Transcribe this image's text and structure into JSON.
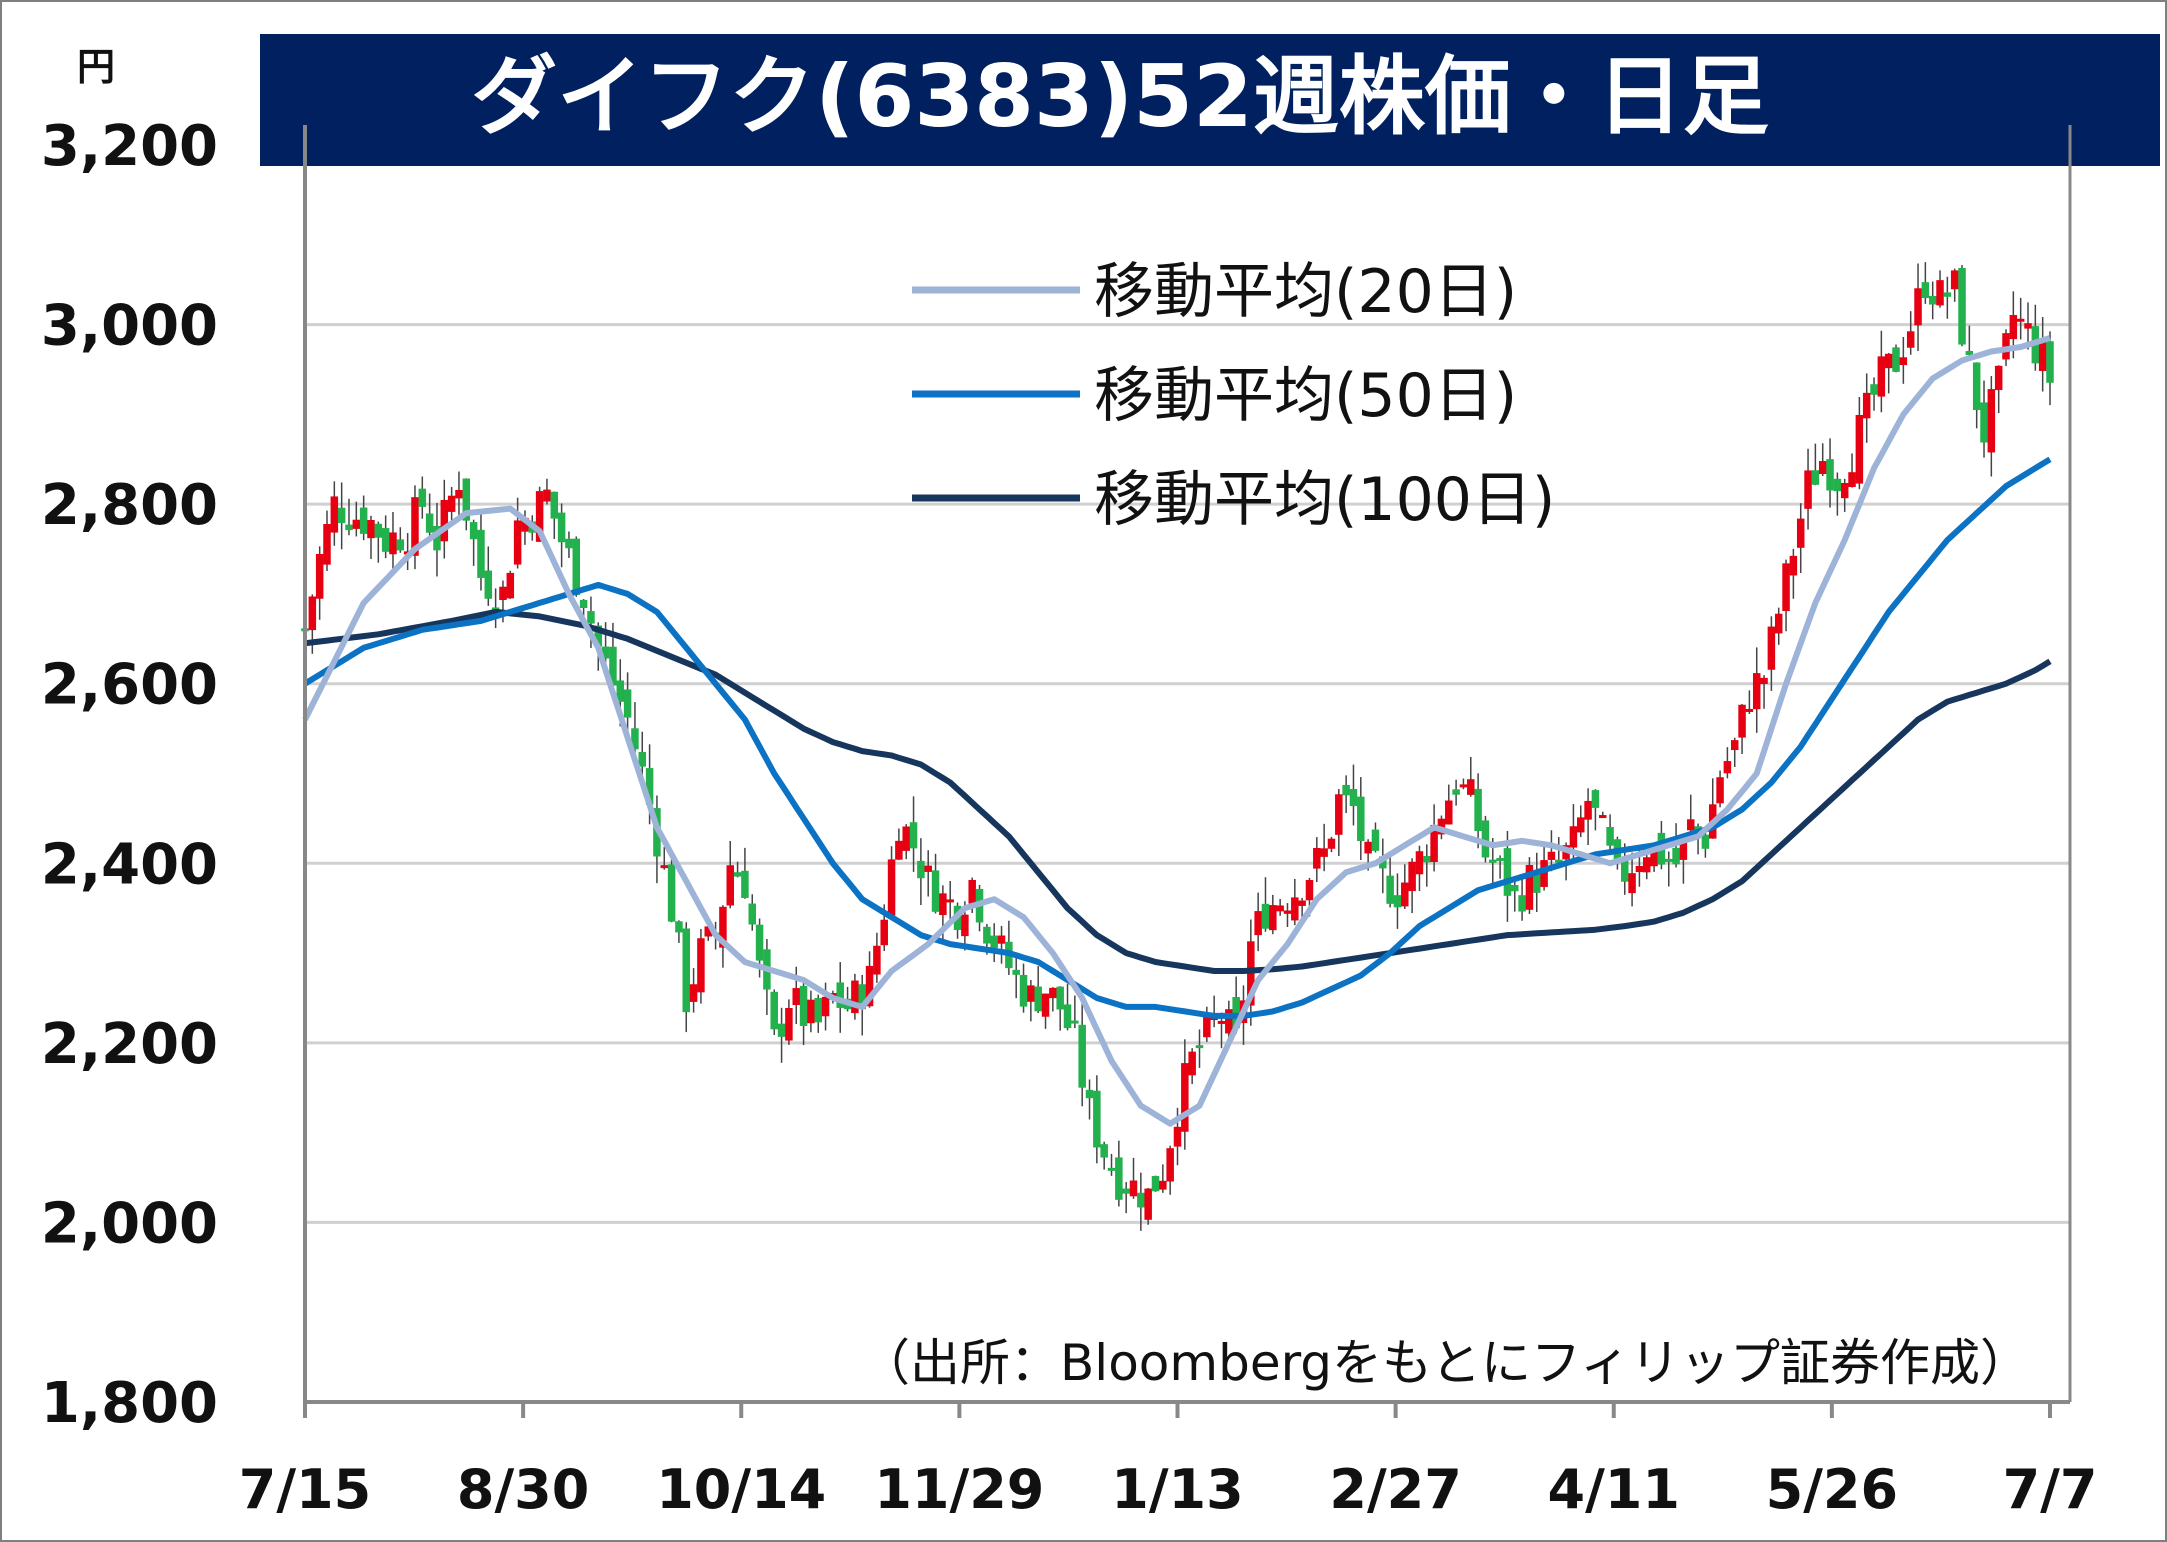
{
  "chart_data": {
    "type": "candlestick",
    "title": "ダイフク(6383)52週株価・日足",
    "unit": "円",
    "ylim": [
      1800,
      3200
    ],
    "y_ticks": [
      "3,200",
      "3,000",
      "2,800",
      "2,600",
      "2,400",
      "2,200",
      "2,000",
      "1,800"
    ],
    "x_ticks": [
      "7/15",
      "8/30",
      "10/14",
      "11/29",
      "1/13",
      "2/27",
      "4/11",
      "5/26",
      "7/7"
    ],
    "grid": true,
    "legend_position": "top-center",
    "source": "（出所：Bloombergをもとにフィリップ証券作成）",
    "colors": {
      "up": "#e60012",
      "down": "#22b14c",
      "ma20": "#9db3d8",
      "ma50": "#0b72c4",
      "ma100": "#17365d",
      "title_bg": "#002060",
      "grid": "#d0d0d0"
    },
    "candle_anchors": [
      [
        0,
        2660
      ],
      [
        2,
        2740
      ],
      [
        4,
        2800
      ],
      [
        6,
        2790
      ],
      [
        9,
        2780
      ],
      [
        11,
        2760
      ],
      [
        14,
        2770
      ],
      [
        16,
        2800
      ],
      [
        18,
        2760
      ],
      [
        21,
        2830
      ],
      [
        24,
        2720
      ],
      [
        27,
        2700
      ],
      [
        29,
        2780
      ],
      [
        31,
        2790
      ],
      [
        33,
        2810
      ],
      [
        35,
        2760
      ],
      [
        38,
        2700
      ],
      [
        40,
        2640
      ],
      [
        42,
        2600
      ],
      [
        44,
        2560
      ],
      [
        46,
        2500
      ],
      [
        48,
        2430
      ],
      [
        50,
        2350
      ],
      [
        52,
        2250
      ],
      [
        54,
        2300
      ],
      [
        56,
        2320
      ],
      [
        58,
        2400
      ],
      [
        60,
        2380
      ],
      [
        62,
        2280
      ],
      [
        64,
        2200
      ],
      [
        66,
        2250
      ],
      [
        68,
        2230
      ],
      [
        70,
        2220
      ],
      [
        72,
        2250
      ],
      [
        74,
        2240
      ],
      [
        77,
        2270
      ],
      [
        79,
        2350
      ],
      [
        81,
        2450
      ],
      [
        83,
        2420
      ],
      [
        85,
        2380
      ],
      [
        87,
        2360
      ],
      [
        89,
        2350
      ],
      [
        91,
        2380
      ],
      [
        93,
        2330
      ],
      [
        95,
        2300
      ],
      [
        97,
        2270
      ],
      [
        99,
        2250
      ],
      [
        101,
        2260
      ],
      [
        103,
        2240
      ],
      [
        105,
        2200
      ],
      [
        107,
        2120
      ],
      [
        109,
        2080
      ],
      [
        111,
        2050
      ],
      [
        113,
        2040
      ],
      [
        115,
        2030
      ],
      [
        117,
        2060
      ],
      [
        119,
        2130
      ],
      [
        121,
        2180
      ],
      [
        123,
        2210
      ],
      [
        125,
        2230
      ],
      [
        127,
        2200
      ],
      [
        129,
        2310
      ],
      [
        131,
        2350
      ],
      [
        133,
        2360
      ],
      [
        135,
        2370
      ],
      [
        137,
        2390
      ],
      [
        139,
        2410
      ],
      [
        141,
        2470
      ],
      [
        143,
        2460
      ],
      [
        145,
        2400
      ],
      [
        147,
        2380
      ],
      [
        149,
        2370
      ],
      [
        151,
        2390
      ],
      [
        153,
        2420
      ],
      [
        155,
        2460
      ],
      [
        157,
        2490
      ],
      [
        159,
        2470
      ],
      [
        161,
        2410
      ],
      [
        163,
        2390
      ],
      [
        165,
        2360
      ],
      [
        167,
        2380
      ],
      [
        169,
        2390
      ],
      [
        171,
        2400
      ],
      [
        173,
        2420
      ],
      [
        175,
        2470
      ],
      [
        177,
        2430
      ],
      [
        179,
        2380
      ],
      [
        181,
        2400
      ],
      [
        183,
        2420
      ],
      [
        185,
        2410
      ],
      [
        187,
        2400
      ],
      [
        189,
        2440
      ],
      [
        191,
        2430
      ],
      [
        193,
        2500
      ],
      [
        195,
        2530
      ],
      [
        197,
        2590
      ],
      [
        199,
        2610
      ],
      [
        201,
        2680
      ],
      [
        203,
        2750
      ],
      [
        205,
        2820
      ],
      [
        207,
        2850
      ],
      [
        209,
        2830
      ],
      [
        211,
        2860
      ],
      [
        213,
        2900
      ],
      [
        215,
        2940
      ],
      [
        217,
        2960
      ],
      [
        219,
        3000
      ],
      [
        221,
        3050
      ],
      [
        223,
        3030
      ],
      [
        225,
        3040
      ],
      [
        227,
        2950
      ],
      [
        229,
        2880
      ],
      [
        231,
        2930
      ],
      [
        233,
        3010
      ],
      [
        235,
        2990
      ],
      [
        237,
        2960
      ],
      [
        238,
        2940
      ]
    ],
    "ma_anchors": {
      "ma20": [
        [
          0,
          2560
        ],
        [
          8,
          2690
        ],
        [
          15,
          2750
        ],
        [
          22,
          2790
        ],
        [
          28,
          2795
        ],
        [
          32,
          2770
        ],
        [
          36,
          2700
        ],
        [
          40,
          2640
        ],
        [
          44,
          2540
        ],
        [
          48,
          2440
        ],
        [
          52,
          2380
        ],
        [
          56,
          2320
        ],
        [
          60,
          2290
        ],
        [
          64,
          2280
        ],
        [
          68,
          2270
        ],
        [
          72,
          2250
        ],
        [
          76,
          2240
        ],
        [
          80,
          2280
        ],
        [
          85,
          2310
        ],
        [
          90,
          2350
        ],
        [
          94,
          2360
        ],
        [
          98,
          2340
        ],
        [
          102,
          2300
        ],
        [
          106,
          2250
        ],
        [
          110,
          2180
        ],
        [
          114,
          2130
        ],
        [
          118,
          2110
        ],
        [
          122,
          2130
        ],
        [
          126,
          2200
        ],
        [
          130,
          2270
        ],
        [
          134,
          2310
        ],
        [
          138,
          2360
        ],
        [
          142,
          2390
        ],
        [
          146,
          2400
        ],
        [
          150,
          2420
        ],
        [
          154,
          2440
        ],
        [
          158,
          2430
        ],
        [
          162,
          2420
        ],
        [
          166,
          2425
        ],
        [
          170,
          2420
        ],
        [
          174,
          2410
        ],
        [
          178,
          2400
        ],
        [
          182,
          2410
        ],
        [
          186,
          2420
        ],
        [
          190,
          2430
        ],
        [
          194,
          2460
        ],
        [
          198,
          2500
        ],
        [
          202,
          2600
        ],
        [
          206,
          2690
        ],
        [
          210,
          2760
        ],
        [
          214,
          2840
        ],
        [
          218,
          2900
        ],
        [
          222,
          2940
        ],
        [
          226,
          2960
        ],
        [
          230,
          2970
        ],
        [
          234,
          2975
        ],
        [
          238,
          2985
        ]
      ],
      "ma50": [
        [
          0,
          2600
        ],
        [
          8,
          2640
        ],
        [
          16,
          2660
        ],
        [
          24,
          2670
        ],
        [
          32,
          2690
        ],
        [
          36,
          2700
        ],
        [
          40,
          2710
        ],
        [
          44,
          2700
        ],
        [
          48,
          2680
        ],
        [
          52,
          2640
        ],
        [
          56,
          2600
        ],
        [
          60,
          2560
        ],
        [
          64,
          2500
        ],
        [
          68,
          2450
        ],
        [
          72,
          2400
        ],
        [
          76,
          2360
        ],
        [
          80,
          2340
        ],
        [
          84,
          2320
        ],
        [
          88,
          2310
        ],
        [
          92,
          2305
        ],
        [
          96,
          2300
        ],
        [
          100,
          2290
        ],
        [
          104,
          2270
        ],
        [
          108,
          2250
        ],
        [
          112,
          2240
        ],
        [
          116,
          2240
        ],
        [
          120,
          2235
        ],
        [
          124,
          2230
        ],
        [
          128,
          2230
        ],
        [
          132,
          2235
        ],
        [
          136,
          2245
        ],
        [
          140,
          2260
        ],
        [
          144,
          2275
        ],
        [
          148,
          2300
        ],
        [
          152,
          2330
        ],
        [
          156,
          2350
        ],
        [
          160,
          2370
        ],
        [
          164,
          2380
        ],
        [
          168,
          2390
        ],
        [
          172,
          2400
        ],
        [
          176,
          2410
        ],
        [
          180,
          2415
        ],
        [
          184,
          2420
        ],
        [
          188,
          2430
        ],
        [
          192,
          2440
        ],
        [
          196,
          2460
        ],
        [
          200,
          2490
        ],
        [
          204,
          2530
        ],
        [
          208,
          2580
        ],
        [
          212,
          2630
        ],
        [
          216,
          2680
        ],
        [
          220,
          2720
        ],
        [
          224,
          2760
        ],
        [
          228,
          2790
        ],
        [
          232,
          2820
        ],
        [
          236,
          2840
        ],
        [
          238,
          2850
        ]
      ],
      "ma100": [
        [
          0,
          2645
        ],
        [
          10,
          2655
        ],
        [
          20,
          2670
        ],
        [
          26,
          2680
        ],
        [
          32,
          2675
        ],
        [
          38,
          2665
        ],
        [
          44,
          2650
        ],
        [
          50,
          2630
        ],
        [
          56,
          2610
        ],
        [
          62,
          2580
        ],
        [
          68,
          2550
        ],
        [
          72,
          2535
        ],
        [
          76,
          2525
        ],
        [
          80,
          2520
        ],
        [
          84,
          2510
        ],
        [
          88,
          2490
        ],
        [
          92,
          2460
        ],
        [
          96,
          2430
        ],
        [
          100,
          2390
        ],
        [
          104,
          2350
        ],
        [
          108,
          2320
        ],
        [
          112,
          2300
        ],
        [
          116,
          2290
        ],
        [
          120,
          2285
        ],
        [
          124,
          2280
        ],
        [
          128,
          2280
        ],
        [
          132,
          2282
        ],
        [
          136,
          2285
        ],
        [
          140,
          2290
        ],
        [
          144,
          2295
        ],
        [
          148,
          2300
        ],
        [
          152,
          2305
        ],
        [
          156,
          2310
        ],
        [
          160,
          2315
        ],
        [
          164,
          2320
        ],
        [
          168,
          2322
        ],
        [
          172,
          2324
        ],
        [
          176,
          2326
        ],
        [
          180,
          2330
        ],
        [
          184,
          2335
        ],
        [
          188,
          2345
        ],
        [
          192,
          2360
        ],
        [
          196,
          2380
        ],
        [
          200,
          2410
        ],
        [
          204,
          2440
        ],
        [
          208,
          2470
        ],
        [
          212,
          2500
        ],
        [
          216,
          2530
        ],
        [
          220,
          2560
        ],
        [
          224,
          2580
        ],
        [
          228,
          2590
        ],
        [
          232,
          2600
        ],
        [
          236,
          2615
        ],
        [
          238,
          2625
        ]
      ]
    },
    "series": [
      {
        "name": "移動平均(20日)",
        "color_key": "ma20"
      },
      {
        "name": "移動平均(50日)",
        "color_key": "ma50"
      },
      {
        "name": "移動平均(100日)",
        "color_key": "ma100"
      }
    ]
  }
}
